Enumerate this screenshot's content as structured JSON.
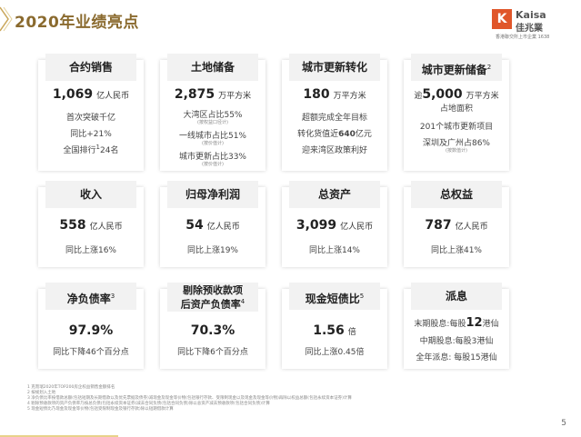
{
  "title": "2020年业绩亮点",
  "logo": {
    "mark": "K",
    "en": "Kaisa",
    "cn": "佳兆業",
    "sub": "香港聯交所上市企業 1638"
  },
  "cards": {
    "contract_sales": {
      "head": "合约销售",
      "value": "1,069",
      "unit": "亿人民币",
      "l1": "首次突破千亿",
      "l2": "同比+21%",
      "l3": "全国排行",
      "l3b": "24名",
      "l3sup": "1"
    },
    "land_reserve": {
      "head": "土地储备",
      "value": "2,875",
      "unit": "万平方米",
      "l1": "大湾区占比55%",
      "l1n": "(按权益口径计)",
      "l2": "一线城市占比51%",
      "l2n": "(按价值计)",
      "l3": "城市更新占比33%",
      "l3n": "(按价值计)"
    },
    "urban_conv": {
      "head": "城市更新转化",
      "value": "180",
      "unit": "万平方米",
      "l1": "超额完成全年目标",
      "l2a": "转化货值近",
      "l2b": "640",
      "l2c": "亿元",
      "l3": "迎来湾区政策利好"
    },
    "urban_reserve": {
      "head": "城市更新储备",
      "headsup": "2",
      "pre": "逾",
      "value": "5,000",
      "unit": "万平方米",
      "l0": "占地面积",
      "l1": "201个城市更新项目",
      "l2": "深圳及广州占86%",
      "l2n": "(按数值计)"
    },
    "revenue": {
      "head": "收入",
      "value": "558",
      "unit": "亿人民币",
      "l1": "同比上涨16%"
    },
    "net_profit": {
      "head": "归母净利润",
      "value": "54",
      "unit": "亿人民币",
      "l1": "同比上涨19%"
    },
    "total_assets": {
      "head": "总资产",
      "value": "3,099",
      "unit": "亿人民币",
      "l1": "同比上涨14%"
    },
    "equity": {
      "head": "总权益",
      "value": "787",
      "unit": "亿人民币",
      "l1": "同比上涨41%"
    },
    "net_gearing": {
      "head": "净负债率",
      "headsup": "3",
      "value": "97.9%",
      "l1": "同比下降46个百分点"
    },
    "liab_ratio": {
      "head1": "剔除预收款项",
      "head2": "后资产负债率",
      "headsup": "4",
      "value": "70.3%",
      "l1": "同比下降6个百分点"
    },
    "cash_ratio": {
      "head": "现金短债比",
      "headsup": "5",
      "value": "1.56",
      "unit": "倍",
      "l1": "同比上涨0.45倍"
    },
    "dividend": {
      "head": "派息",
      "l1a": "末期股息:每股",
      "l1b": "12",
      "l1c": "港仙",
      "l2": "中期股息:每股3港仙",
      "l3": "全年派息: 每股15港仙"
    }
  },
  "notes": [
    "1    克而瑞2020年TOP200房企权益销售金额排名",
    "2    按规划入土地",
    "3    净负债比率按借款总额(包括短期及长期借款以及优先票据及债券)减现金及现金等价物(包括银行存款、受限制现金以及现金及现金等价物)再除以权益总额(包括永续资本证券)计算",
    "4    剔除预收款项的资产负债率乃按总负债(包括永续资本证券)减去合同负债(包括合同负债)除以总资产减去预收款项(包括合同负债)计算",
    "5    现金短债比乃现金及现金等价物(包括受限制现金及银行存款)除以短期借款计算"
  ],
  "page": "5"
}
